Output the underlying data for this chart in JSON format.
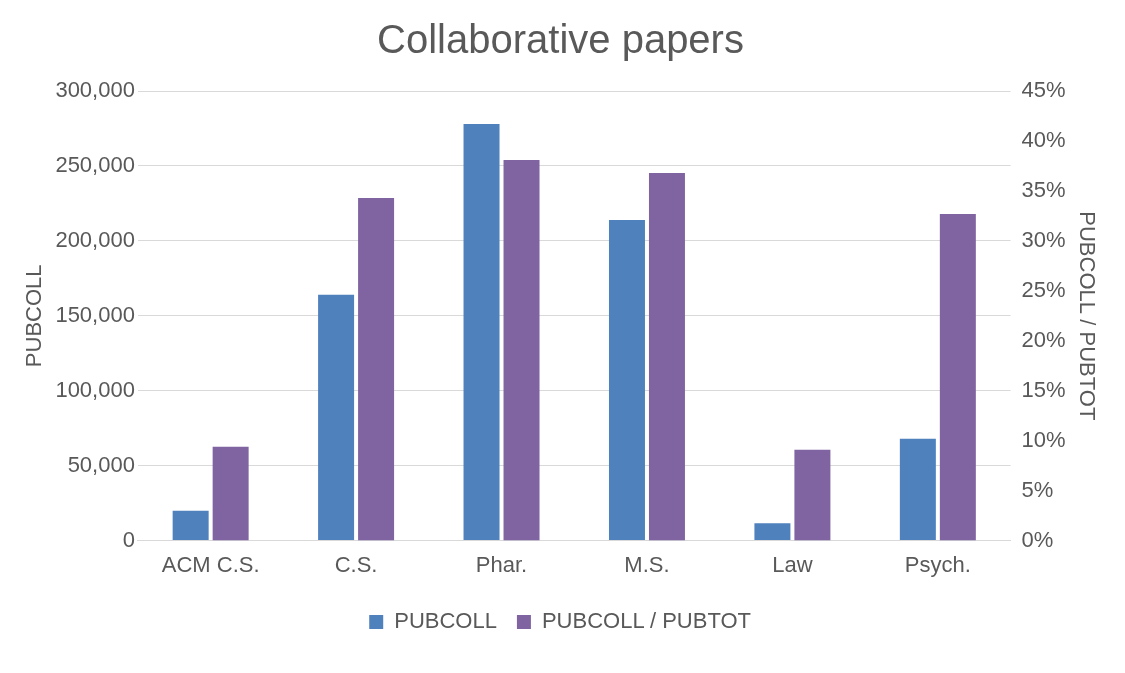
{
  "chart_data": {
    "type": "bar",
    "title": "Collaborative papers",
    "ylabel": "PUBCOLL",
    "y2label": "PUBCOLL / PUBTOT",
    "categories": [
      "ACM C.S.",
      "C.S.",
      "Phar.",
      "M.S.",
      "Law",
      "Psych."
    ],
    "series": [
      {
        "name": "PUBCOLL",
        "color": "#4f81bd",
        "values": [
          20000,
          164000,
          278000,
          214000,
          11500,
          68000
        ]
      },
      {
        "name": "PUBCOLL / PUBTOT",
        "color": "#8064a2",
        "axis": "y2",
        "values": [
          9.4,
          34.3,
          38.1,
          36.8,
          9.1,
          32.7
        ]
      }
    ],
    "ylim": [
      0,
      300000
    ],
    "yticks": [
      {
        "value": 0,
        "label": "0"
      },
      {
        "value": 50000,
        "label": "50,000"
      },
      {
        "value": 100000,
        "label": "100,000"
      },
      {
        "value": 150000,
        "label": "150,000"
      },
      {
        "value": 200000,
        "label": "200,000"
      },
      {
        "value": 250000,
        "label": "250,000"
      },
      {
        "value": 300000,
        "label": "300,000"
      }
    ],
    "y2lim": [
      0,
      45
    ],
    "y2ticks": [
      {
        "value": 0,
        "label": "0%"
      },
      {
        "value": 5,
        "label": "5%"
      },
      {
        "value": 10,
        "label": "10%"
      },
      {
        "value": 15,
        "label": "15%"
      },
      {
        "value": 20,
        "label": "20%"
      },
      {
        "value": 25,
        "label": "25%"
      },
      {
        "value": 30,
        "label": "30%"
      },
      {
        "value": 35,
        "label": "35%"
      },
      {
        "value": 40,
        "label": "40%"
      },
      {
        "value": 45,
        "label": "45%"
      }
    ],
    "grid": "y",
    "legend": "bottom"
  }
}
